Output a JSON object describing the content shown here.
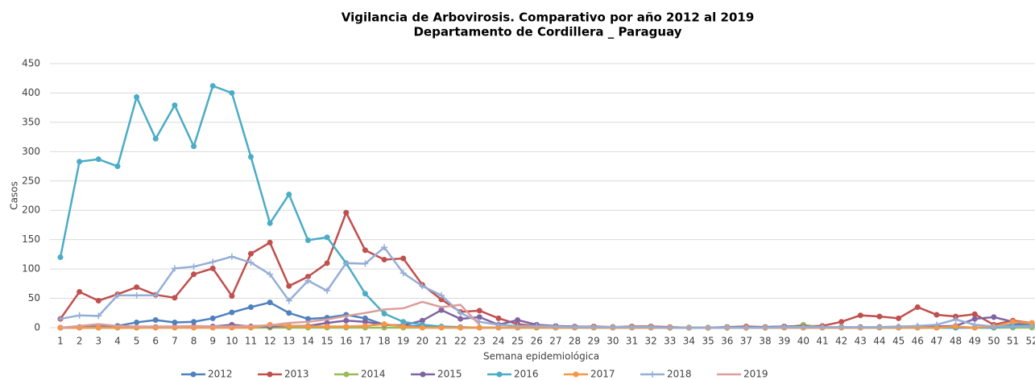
{
  "chart_data": {
    "type": "line",
    "title": "Vigilancia de Arbovirosis. Comparativo por año 2012 al 2019",
    "subtitle": "Departamento de Cordillera _ Paraguay",
    "x_label": "Semana epidemiológica",
    "y_label": "Casos",
    "categories": [
      1,
      2,
      3,
      4,
      5,
      6,
      7,
      8,
      9,
      10,
      11,
      12,
      13,
      14,
      15,
      16,
      17,
      18,
      19,
      20,
      21,
      22,
      23,
      24,
      25,
      26,
      27,
      28,
      29,
      30,
      31,
      32,
      33,
      34,
      35,
      36,
      37,
      38,
      39,
      40,
      41,
      42,
      43,
      44,
      45,
      46,
      47,
      48,
      49,
      50,
      51,
      52
    ],
    "ylim": [
      0,
      450
    ],
    "yticks": [
      0,
      50,
      100,
      150,
      200,
      250,
      300,
      350,
      400,
      450
    ],
    "grid": true,
    "legend": "bottom",
    "series": [
      {
        "name": "2012",
        "color": "#4f81bd",
        "marker": "circle",
        "values": [
          0,
          1,
          2,
          3,
          9,
          13,
          9,
          10,
          16,
          26,
          35,
          43,
          25,
          15,
          17,
          22,
          16,
          5,
          3,
          2,
          1,
          0,
          0,
          0,
          0,
          0,
          0,
          0,
          0,
          0,
          0,
          0,
          0,
          0,
          0,
          0,
          0,
          0,
          0,
          0,
          0,
          0,
          0,
          0,
          0,
          0,
          0,
          0,
          0,
          0,
          5,
          6
        ]
      },
      {
        "name": "2013",
        "color": "#c0504d",
        "marker": "circle",
        "values": [
          15,
          61,
          46,
          57,
          69,
          56,
          51,
          91,
          101,
          54,
          126,
          145,
          71,
          87,
          110,
          196,
          132,
          116,
          118,
          73,
          48,
          27,
          29,
          16,
          6,
          3,
          2,
          1,
          2,
          1,
          2,
          2,
          1,
          0,
          0,
          1,
          2,
          1,
          2,
          2,
          3,
          10,
          21,
          19,
          16,
          35,
          22,
          19,
          23,
          5,
          12,
          8
        ]
      },
      {
        "name": "2014",
        "color": "#9bbb59",
        "marker": "circle",
        "values": [
          0,
          0,
          0,
          0,
          0,
          0,
          0,
          0,
          0,
          0,
          0,
          0,
          0,
          0,
          0,
          0,
          0,
          0,
          0,
          0,
          0,
          0,
          0,
          0,
          0,
          0,
          0,
          0,
          0,
          0,
          0,
          0,
          0,
          0,
          0,
          0,
          0,
          0,
          0,
          5,
          0,
          0,
          0,
          0,
          0,
          0,
          0,
          0,
          0,
          0,
          0,
          0
        ]
      },
      {
        "name": "2015",
        "color": "#8064a2",
        "marker": "circle",
        "values": [
          0,
          0,
          0,
          0,
          0,
          1,
          1,
          2,
          2,
          5,
          2,
          2,
          3,
          3,
          8,
          12,
          10,
          5,
          4,
          12,
          30,
          15,
          18,
          5,
          13,
          5,
          3,
          2,
          1,
          1,
          1,
          1,
          0,
          0,
          0,
          1,
          1,
          1,
          2,
          2,
          1,
          1,
          1,
          1,
          1,
          1,
          2,
          3,
          15,
          18,
          10,
          5
        ]
      },
      {
        "name": "2016",
        "color": "#4bacc6",
        "marker": "circle",
        "values": [
          120,
          283,
          287,
          275,
          393,
          322,
          379,
          309,
          412,
          400,
          291,
          178,
          227,
          149,
          154,
          110,
          58,
          24,
          10,
          5,
          2,
          1,
          0,
          0,
          0,
          0,
          0,
          0,
          0,
          0,
          0,
          0,
          0,
          0,
          0,
          0,
          0,
          0,
          0,
          0,
          0,
          0,
          0,
          0,
          0,
          0,
          0,
          0,
          0,
          0,
          2,
          5
        ]
      },
      {
        "name": "2017",
        "color": "#f79646",
        "marker": "circle",
        "values": [
          0,
          0,
          0,
          0,
          0,
          0,
          0,
          0,
          0,
          0,
          0,
          5,
          3,
          2,
          2,
          2,
          3,
          6,
          2,
          0,
          0,
          0,
          0,
          0,
          0,
          0,
          0,
          0,
          0,
          0,
          0,
          0,
          0,
          0,
          0,
          0,
          0,
          0,
          0,
          0,
          0,
          0,
          0,
          0,
          0,
          0,
          0,
          2,
          0,
          2,
          10,
          8
        ]
      },
      {
        "name": "2018",
        "color": "#95aed6",
        "marker": "plus",
        "values": [
          15,
          21,
          20,
          55,
          55,
          55,
          101,
          104,
          112,
          121,
          111,
          91,
          46,
          80,
          63,
          110,
          109,
          137,
          93,
          71,
          55,
          25,
          10,
          5,
          3,
          3,
          2,
          1,
          1,
          1,
          1,
          1,
          0,
          0,
          0,
          0,
          0,
          0,
          1,
          1,
          1,
          1,
          1,
          1,
          2,
          3,
          5,
          14,
          5,
          2,
          2,
          2
        ]
      },
      {
        "name": "2019",
        "color": "#dc9d9b",
        "marker": "none",
        "values": [
          0,
          3,
          6,
          3,
          2,
          2,
          2,
          3,
          2,
          2,
          3,
          4,
          8,
          10,
          14,
          20,
          25,
          31,
          33,
          44,
          35,
          39,
          5,
          null,
          null,
          null,
          null,
          null,
          null,
          null,
          null,
          null,
          null,
          null,
          null,
          null,
          null,
          null,
          null,
          null,
          null,
          null,
          null,
          null,
          null,
          null,
          null,
          null,
          null,
          null,
          null,
          null
        ]
      }
    ]
  }
}
